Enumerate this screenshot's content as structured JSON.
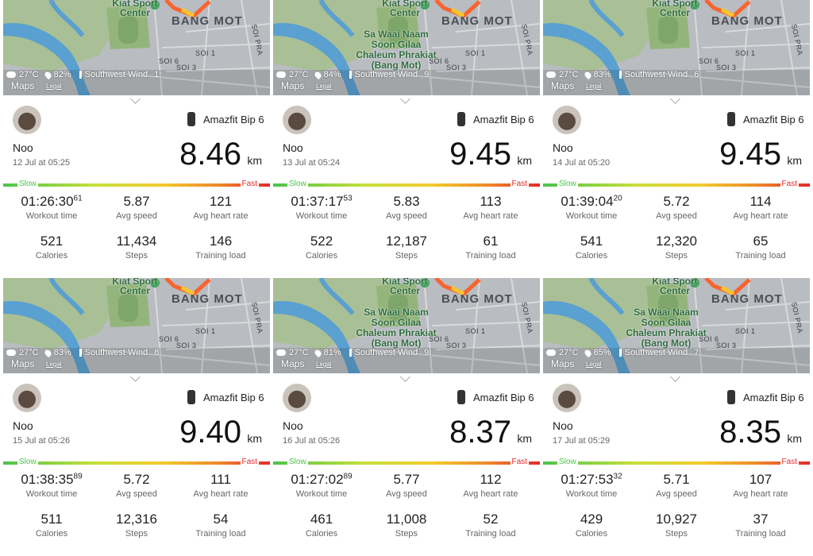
{
  "panels": [
    {
      "map": {
        "labels": [
          "Kiat Sport Center",
          "BANG MOT",
          "SOI PRA",
          "SOI 1",
          "SOI 6",
          "SOI 3"
        ],
        "poi": null
      },
      "weather": {
        "temp": "27°C",
        "humidity": "82%",
        "wind": "Southwest Wind",
        "wind_speed": "1:"
      },
      "maps": "Maps",
      "legal": "Legal",
      "device": "Amazfit Bip 6",
      "name": "Noo",
      "date": "12 Jul at 05:25",
      "distance": "8.46",
      "unit": "km",
      "slow": "Slow",
      "fast": "Fast",
      "stats": [
        {
          "value": "01:26:30",
          "sup": "61",
          "label": "Workout time"
        },
        {
          "value": "5.87",
          "label": "Avg speed"
        },
        {
          "value": "121",
          "label": "Avg heart rate"
        },
        {
          "value": "521",
          "label": "Calories"
        },
        {
          "value": "11,434",
          "label": "Steps"
        },
        {
          "value": "146",
          "label": "Training load"
        }
      ]
    },
    {
      "map": {
        "labels": [
          "Kiat Sport Center",
          "BANG MOT",
          "SOI PRA",
          "SOI 1",
          "SOI 6",
          "SOI 3"
        ],
        "poi": "Sa Waai Naam Soon Gilaa Chaleum Phrakiat (Bang Mot)"
      },
      "weather": {
        "temp": "27°C",
        "humidity": "84%",
        "wind": "Southwest Wind",
        "wind_speed": "9"
      },
      "maps": "Maps",
      "legal": "Legal",
      "device": "Amazfit Bip 6",
      "name": "Noo",
      "date": "13 Jul at 05:24",
      "distance": "9.45",
      "unit": "km",
      "slow": "Slow",
      "fast": "Fast",
      "stats": [
        {
          "value": "01:37:17",
          "sup": "53",
          "label": "Workout time"
        },
        {
          "value": "5.83",
          "label": "Avg speed"
        },
        {
          "value": "113",
          "label": "Avg heart rate"
        },
        {
          "value": "522",
          "label": "Calories"
        },
        {
          "value": "12,187",
          "label": "Steps"
        },
        {
          "value": "61",
          "label": "Training load"
        }
      ]
    },
    {
      "map": {
        "labels": [
          "Kiat Sport Center",
          "BANG MOT",
          "SOI PRA",
          "SOI 1",
          "SOI 6",
          "SOI 3"
        ],
        "poi": null
      },
      "weather": {
        "temp": "27°C",
        "humidity": "83%",
        "wind": "Southwest Wind",
        "wind_speed": "6"
      },
      "maps": "Maps",
      "legal": "Legal",
      "device": "Amazfit Bip 6",
      "name": "Noo",
      "date": "14 Jul at 05:20",
      "distance": "9.45",
      "unit": "km",
      "slow": "Slow",
      "fast": "Fast",
      "stats": [
        {
          "value": "01:39:04",
          "sup": "20",
          "label": "Workout time"
        },
        {
          "value": "5.72",
          "label": "Avg speed"
        },
        {
          "value": "114",
          "label": "Avg heart rate"
        },
        {
          "value": "541",
          "label": "Calories"
        },
        {
          "value": "12,320",
          "label": "Steps"
        },
        {
          "value": "65",
          "label": "Training load"
        }
      ]
    },
    {
      "map": {
        "labels": [
          "Kiat Sport Center",
          "BANG MOT",
          "SOI PRA",
          "SOI 1",
          "SOI 6",
          "SOI 3"
        ],
        "poi": null
      },
      "weather": {
        "temp": "27°C",
        "humidity": "83%",
        "wind": "Southwest Wind",
        "wind_speed": "8"
      },
      "maps": "Maps",
      "legal": "Legal",
      "device": "Amazfit Bip 6",
      "name": "Noo",
      "date": "15 Jul at 05:26",
      "distance": "9.40",
      "unit": "km",
      "slow": "Slow",
      "fast": "Fast",
      "stats": [
        {
          "value": "01:38:35",
          "sup": "89",
          "label": "Workout time"
        },
        {
          "value": "5.72",
          "label": "Avg speed"
        },
        {
          "value": "111",
          "label": "Avg heart rate"
        },
        {
          "value": "511",
          "label": "Calories"
        },
        {
          "value": "12,316",
          "label": "Steps"
        },
        {
          "value": "54",
          "label": "Training load"
        }
      ]
    },
    {
      "map": {
        "labels": [
          "Kiat Sport Center",
          "BANG MOT",
          "SOI PRA",
          "SOI 1",
          "SOI 6",
          "SOI 3"
        ],
        "poi": "Sa Waai Naam Soon Gilaa Chaleum Phrakiat (Bang Mot)"
      },
      "weather": {
        "temp": "27°C",
        "humidity": "81%",
        "wind": "Southwest Wind",
        "wind_speed": "9I"
      },
      "maps": "Maps",
      "legal": "Legal",
      "device": "Amazfit Bip 6",
      "name": "Noo",
      "date": "16 Jul at 05:26",
      "distance": "8.37",
      "unit": "km",
      "slow": "Slow",
      "fast": "Fast",
      "stats": [
        {
          "value": "01:27:02",
          "sup": "89",
          "label": "Workout time"
        },
        {
          "value": "5.77",
          "label": "Avg speed"
        },
        {
          "value": "112",
          "label": "Avg heart rate"
        },
        {
          "value": "461",
          "label": "Calories"
        },
        {
          "value": "11,008",
          "label": "Steps"
        },
        {
          "value": "52",
          "label": "Training load"
        }
      ]
    },
    {
      "map": {
        "labels": [
          "Kiat Sport Center",
          "BANG MOT",
          "SOI PRA",
          "SOI 1",
          "SOI 6",
          "SOI 3"
        ],
        "poi": "Sa Waai Naam Soon Gilaa Chaleum Phrakiat (Bang Mot)"
      },
      "weather": {
        "temp": "27°C",
        "humidity": "85%",
        "wind": "Southwest Wind",
        "wind_speed": "7:"
      },
      "maps": "Maps",
      "legal": "Legal",
      "device": "Amazfit Bip 6",
      "name": "Noo",
      "date": "17 Jul at 05:29",
      "distance": "8.35",
      "unit": "km",
      "slow": "Slow",
      "fast": "Fast",
      "stats": [
        {
          "value": "01:27:53",
          "sup": "32",
          "label": "Workout time"
        },
        {
          "value": "5.71",
          "label": "Avg speed"
        },
        {
          "value": "107",
          "label": "Avg heart rate"
        },
        {
          "value": "429",
          "label": "Calories"
        },
        {
          "value": "10,927",
          "label": "Steps"
        },
        {
          "value": "37",
          "label": "Training load"
        }
      ]
    }
  ]
}
